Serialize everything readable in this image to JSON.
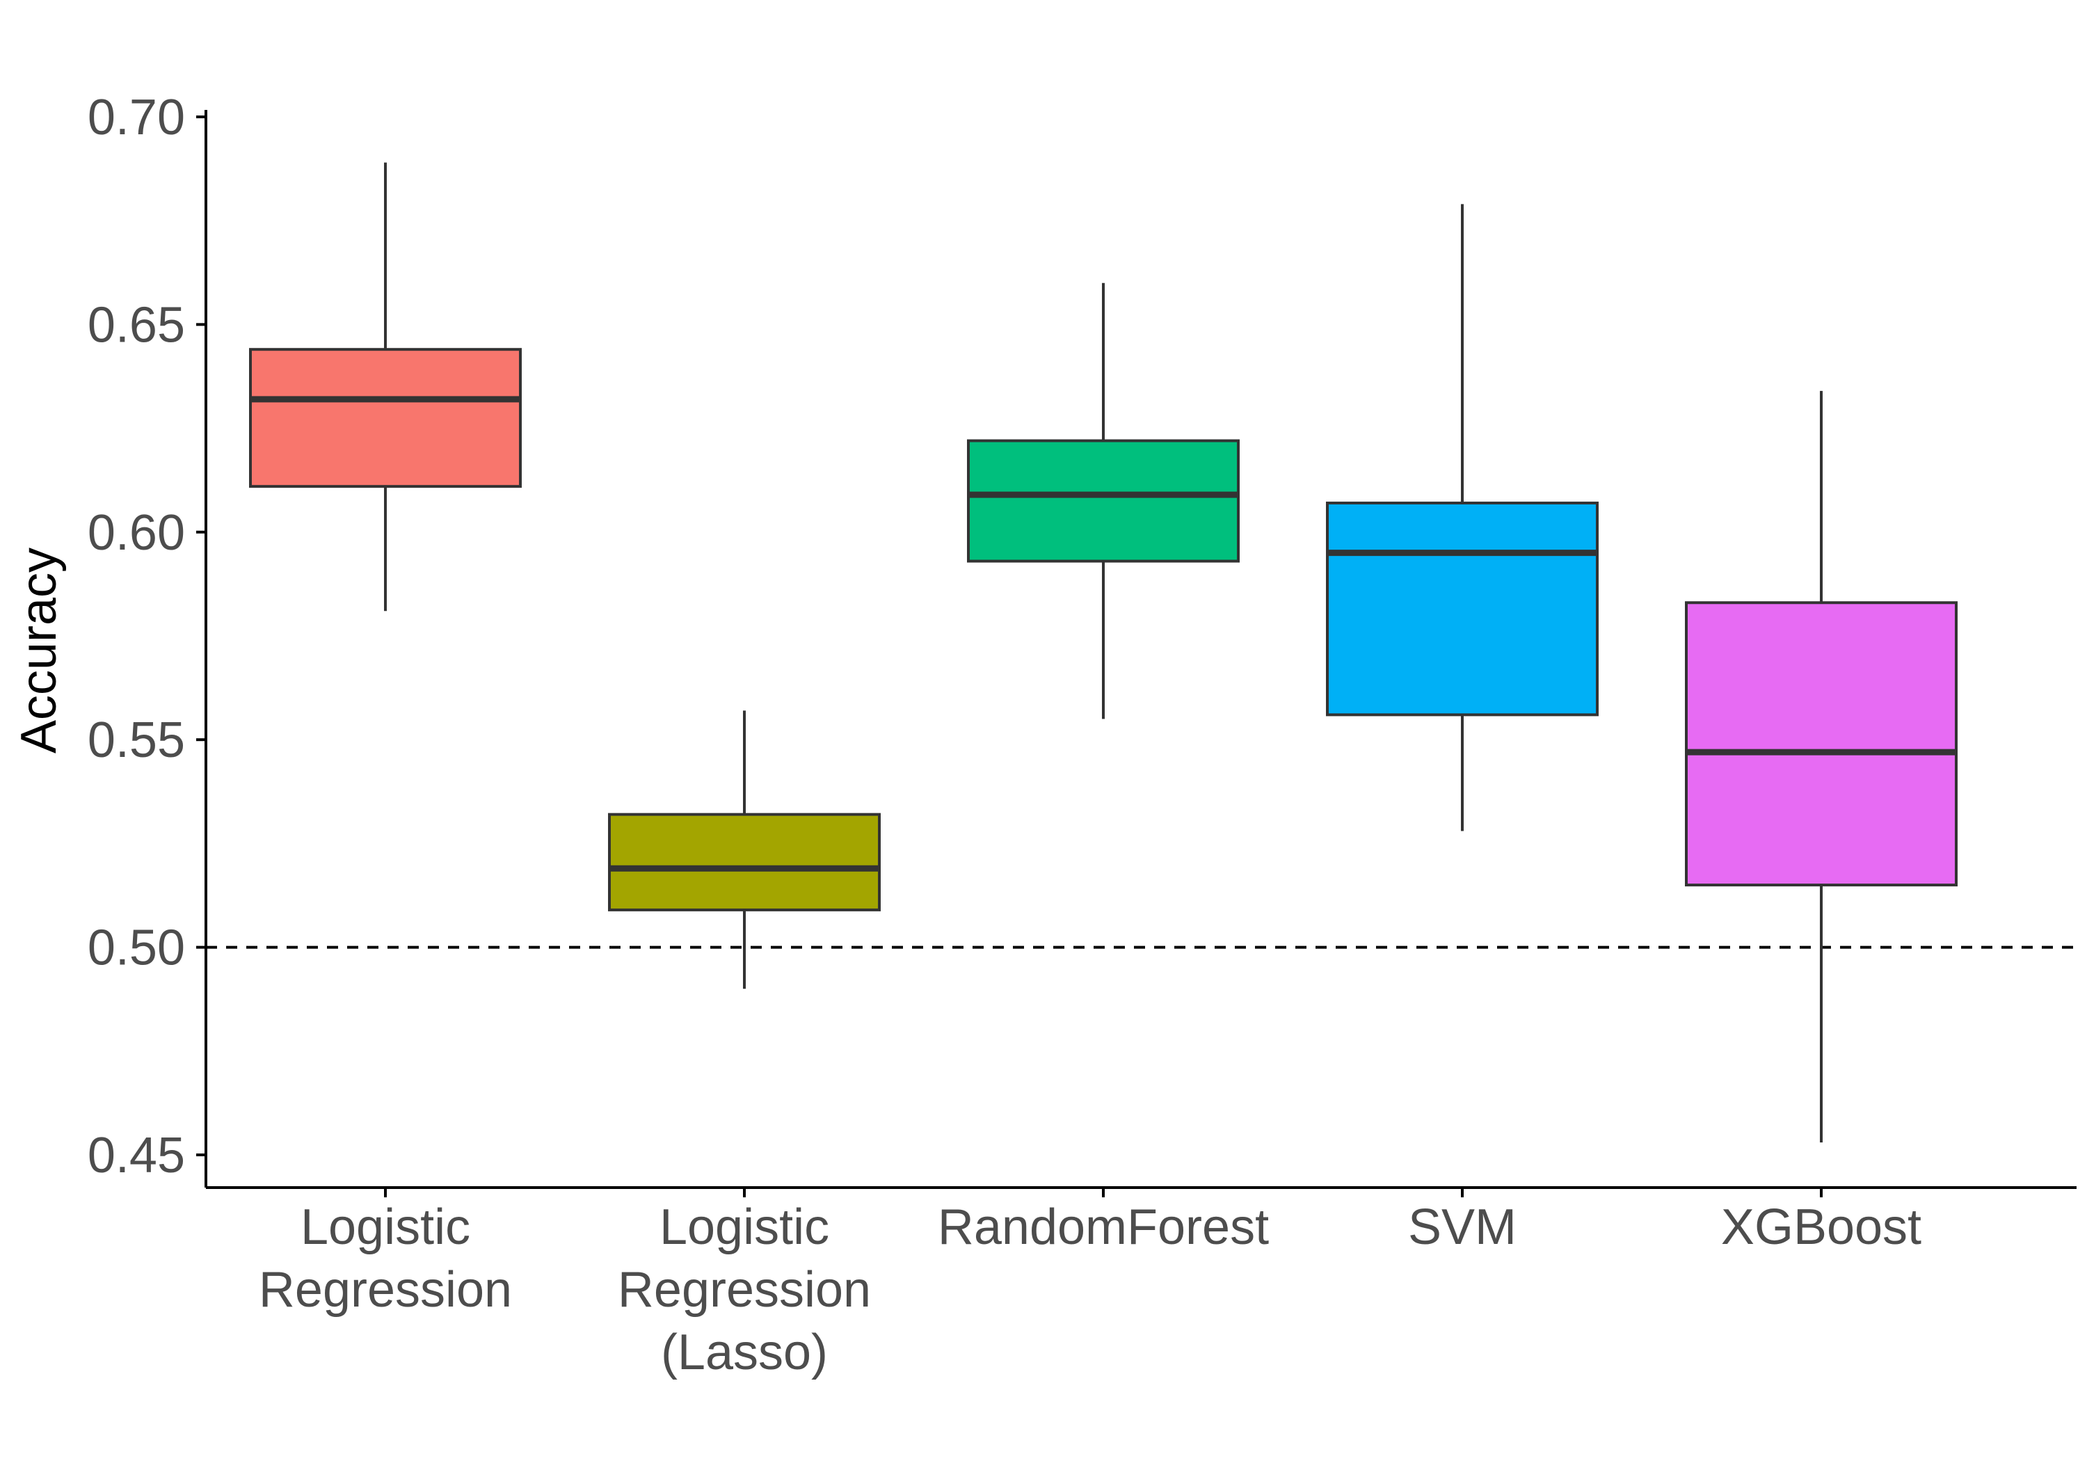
{
  "chart_data": {
    "type": "boxplot",
    "title": "",
    "xlabel": "",
    "ylabel": "Accuracy",
    "ylim": [
      0.442,
      0.7
    ],
    "yticks": [
      "0.45",
      "0.50",
      "0.55",
      "0.60",
      "0.65",
      "0.70"
    ],
    "grid": false,
    "legend": "none",
    "reference_line": {
      "y": 0.5,
      "style": "dashed",
      "color": "#000000"
    },
    "categories": [
      [
        "Logistic",
        "Regression"
      ],
      [
        "Logistic",
        "Regression",
        "(Lasso)"
      ],
      [
        "RandomForest"
      ],
      [
        "SVM"
      ],
      [
        "XGBoost"
      ]
    ],
    "boxes": [
      {
        "name": "Logistic Regression",
        "min": 0.581,
        "q1": 0.611,
        "median": 0.632,
        "q3": 0.644,
        "max": 0.689,
        "color": "#F8766D"
      },
      {
        "name": "Logistic Regression (Lasso)",
        "min": 0.49,
        "q1": 0.509,
        "median": 0.519,
        "q3": 0.532,
        "max": 0.557,
        "color": "#A3A500"
      },
      {
        "name": "RandomForest",
        "min": 0.555,
        "q1": 0.593,
        "median": 0.609,
        "q3": 0.622,
        "max": 0.66,
        "color": "#00BF7D"
      },
      {
        "name": "SVM",
        "min": 0.528,
        "q1": 0.556,
        "median": 0.595,
        "q3": 0.607,
        "max": 0.679,
        "color": "#00B0F6"
      },
      {
        "name": "XGBoost",
        "min": 0.453,
        "q1": 0.515,
        "median": 0.547,
        "q3": 0.583,
        "max": 0.634,
        "color": "#E76BF3"
      }
    ],
    "colors": {
      "axis": "#000000",
      "tick_text": "#4d4d4d",
      "box_outline": "#333333",
      "median": "#333333"
    }
  }
}
